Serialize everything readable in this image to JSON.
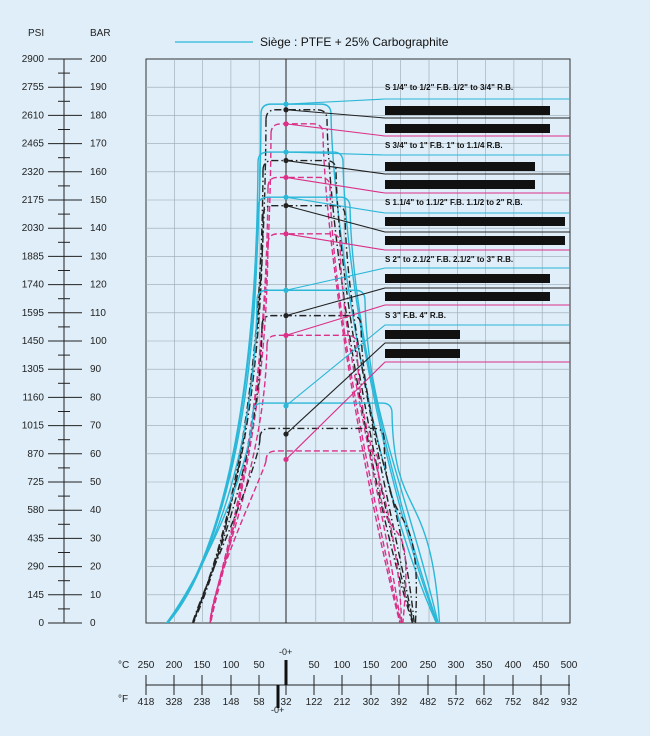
{
  "chart_data": {
    "type": "line",
    "title": "",
    "legend": {
      "label": "Siège : PTFE + 25% Carbographite",
      "color": "#2bb7d8",
      "placement": "top"
    },
    "pressure_scale": {
      "psi_header": "PSI",
      "bar_header": "BAR",
      "psi_ticks": [
        "0",
        "145",
        "290",
        "435",
        "580",
        "725",
        "870",
        "1015",
        "1160",
        "1305",
        "1450",
        "1595",
        "1740",
        "1885",
        "2030",
        "2175",
        "2320",
        "2465",
        "2610",
        "2755",
        "2900"
      ],
      "bar_ticks": [
        "0",
        "10",
        "20",
        "30",
        "40",
        "50",
        "60",
        "70",
        "80",
        "90",
        "100",
        "110",
        "120",
        "130",
        "140",
        "150",
        "160",
        "170",
        "180",
        "190",
        "200"
      ]
    },
    "temperature_scale": {
      "celsius_unit": "°C",
      "fahrenheit_unit": "°F",
      "celsius_ticks": [
        "250",
        "200",
        "150",
        "100",
        "50",
        "50",
        "100",
        "150",
        "200",
        "250",
        "300",
        "350",
        "400",
        "450",
        "500"
      ],
      "fahrenheit_ticks": [
        "418",
        "328",
        "238",
        "148",
        "58",
        "32",
        "122",
        "212",
        "302",
        "392",
        "482",
        "572",
        "662",
        "752",
        "842",
        "932"
      ],
      "zero_mark": "-0+"
    },
    "grid": true,
    "colors": {
      "cyan": "#2bb7d8",
      "black": "#222222",
      "magenta": "#dc2f87"
    },
    "series": [
      {
        "label": "S 1/4\" to 1/2\" F.B. 1/2\" to 3/4\" R.B.",
        "color": "#2bb7d8",
        "style": "solid",
        "max_bar": 184,
        "marker_bar": 184
      },
      {
        "color": "#222222",
        "style": "dashdot",
        "max_bar": 182,
        "marker_bar": 182
      },
      {
        "color": "#dc2f87",
        "style": "dashed",
        "max_bar": 177,
        "marker_bar": 177
      },
      {
        "label": "S 3/4\" to 1\" F.B. 1\" to 1.1/4 R.B.",
        "color": "#2bb7d8",
        "style": "solid",
        "max_bar": 167,
        "marker_bar": 167
      },
      {
        "color": "#222222",
        "style": "dashdot",
        "max_bar": 164,
        "marker_bar": 164
      },
      {
        "color": "#dc2f87",
        "style": "dashed",
        "max_bar": 158,
        "marker_bar": 158
      },
      {
        "label": "S 1.1/4\" to 1.1/2\" F.B. 1.1/2 to 2\" R.B.",
        "color": "#2bb7d8",
        "style": "solid",
        "max_bar": 151,
        "marker_bar": 151
      },
      {
        "color": "#222222",
        "style": "dashdot",
        "max_bar": 148,
        "marker_bar": 148
      },
      {
        "color": "#dc2f87",
        "style": "dashed",
        "max_bar": 138,
        "marker_bar": 138
      },
      {
        "label": "S 2\" to 2.1/2\" F.B. 2.1/2\" to 3\" R.B.",
        "color": "#2bb7d8",
        "style": "solid",
        "max_bar": 118,
        "marker_bar": 118
      },
      {
        "color": "#222222",
        "style": "dashdot",
        "max_bar": 109,
        "marker_bar": 109
      },
      {
        "color": "#dc2f87",
        "style": "dashed",
        "max_bar": 102,
        "marker_bar": 102
      },
      {
        "label": "S 3\" F.B. 4\" R.B.",
        "color": "#2bb7d8",
        "style": "solid",
        "max_bar": 78,
        "marker_bar": 77
      },
      {
        "color": "#222222",
        "style": "dashdot",
        "max_bar": 69,
        "marker_bar": 67
      },
      {
        "color": "#dc2f87",
        "style": "dashed",
        "max_bar": 61,
        "marker_bar": 58
      }
    ]
  }
}
